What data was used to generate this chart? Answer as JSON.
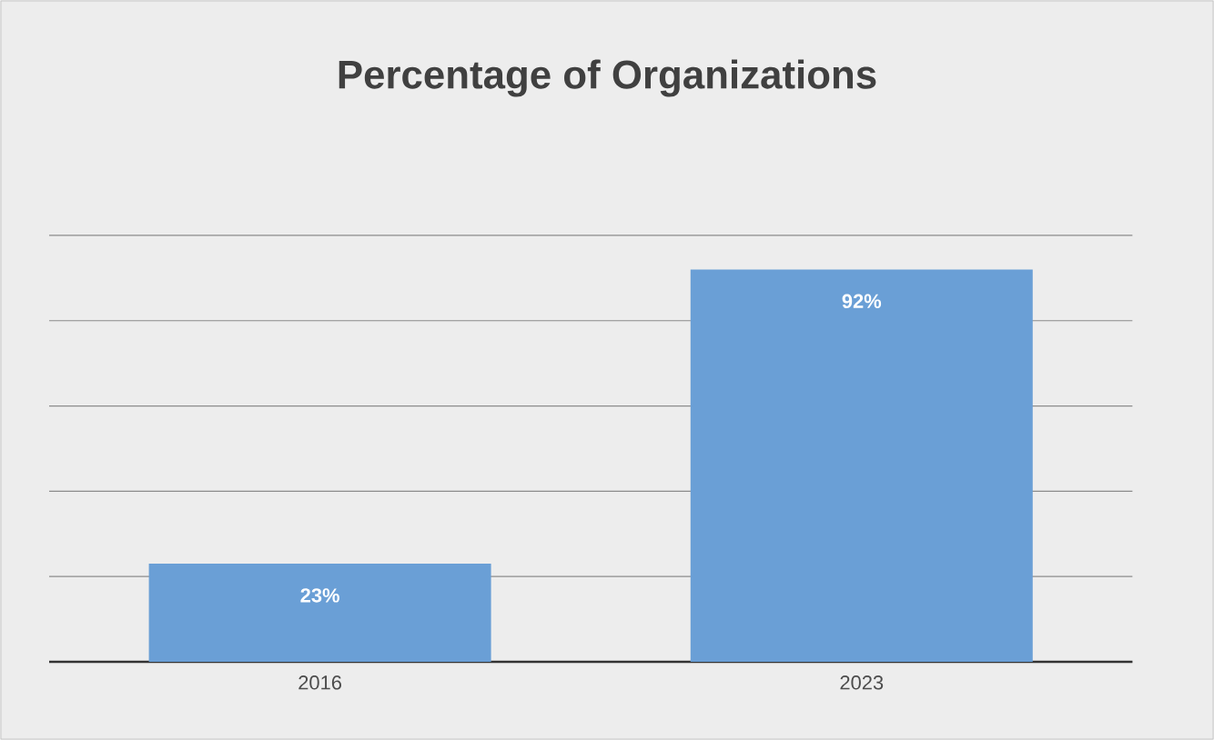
{
  "chart_data": {
    "type": "bar",
    "title": "Percentage of Organizations",
    "categories": [
      "2016",
      "2023"
    ],
    "values": [
      23,
      92
    ],
    "value_labels": [
      "23%",
      "92%"
    ],
    "color": "#6a9fd6",
    "grid": "y",
    "tick_labels": "x"
  }
}
